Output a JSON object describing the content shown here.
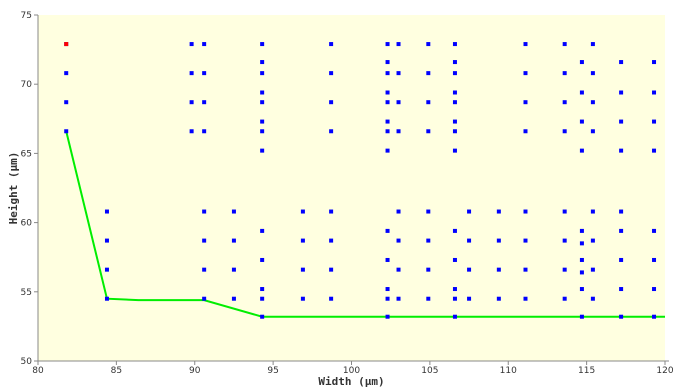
{
  "chart_data": {
    "type": "scatter",
    "title": "",
    "xlabel": "Width (µm)",
    "ylabel": "Height (µm)",
    "xlim": [
      80,
      120
    ],
    "ylim": [
      50,
      75
    ],
    "x_ticks": [
      80,
      85,
      90,
      95,
      100,
      105,
      110,
      115,
      120
    ],
    "y_ticks": [
      50,
      55,
      60,
      65,
      70,
      75
    ],
    "grid": false,
    "colors": {
      "background": "#ffffe0",
      "points": "#0000ff",
      "highlight": "#ff0000",
      "frontier": "#00ee00",
      "axis": "#888888"
    },
    "highlight_point": {
      "x": 81.8,
      "y": 72.9
    },
    "frontier_line": {
      "name": "",
      "x": [
        81.8,
        84.4,
        86.4,
        90.6,
        94.3,
        120
      ],
      "y": [
        66.6,
        54.5,
        54.4,
        54.4,
        53.2,
        53.2
      ]
    },
    "series": [
      {
        "name": "",
        "x": [
          81.8,
          81.8,
          81.8,
          81.8
        ],
        "y": [
          72.9,
          70.8,
          68.7,
          66.6
        ]
      },
      {
        "name": "",
        "x": [
          84.4,
          84.4,
          84.4,
          84.4
        ],
        "y": [
          60.8,
          58.7,
          56.6,
          54.5
        ]
      },
      {
        "name": "",
        "x": [
          89.8,
          89.8,
          89.8,
          89.8
        ],
        "y": [
          72.9,
          70.8,
          68.7,
          66.6
        ]
      },
      {
        "name": "",
        "x": [
          90.6,
          90.6,
          90.6,
          90.6,
          90.6,
          90.6,
          90.6,
          90.6
        ],
        "y": [
          72.9,
          70.8,
          68.7,
          66.6,
          60.8,
          58.7,
          56.6,
          54.5
        ]
      },
      {
        "name": "",
        "x": [
          92.5,
          92.5,
          92.5,
          92.5
        ],
        "y": [
          60.8,
          58.7,
          56.6,
          54.5
        ]
      },
      {
        "name": "",
        "x": [
          94.3,
          94.3,
          94.3,
          94.3,
          94.3,
          94.3,
          94.3,
          94.3,
          94.3,
          94.3,
          94.3,
          94.3,
          94.3
        ],
        "y": [
          72.9,
          71.6,
          70.8,
          69.4,
          68.7,
          67.3,
          66.6,
          65.2,
          59.4,
          57.3,
          55.2,
          54.5,
          53.2
        ]
      },
      {
        "name": "",
        "x": [
          96.9,
          96.9,
          96.9,
          96.9
        ],
        "y": [
          60.8,
          58.7,
          56.6,
          54.5
        ]
      },
      {
        "name": "",
        "x": [
          98.7,
          98.7,
          98.7,
          98.7,
          98.7,
          98.7,
          98.7,
          98.7
        ],
        "y": [
          72.9,
          70.8,
          68.7,
          66.6,
          60.8,
          58.7,
          56.6,
          54.5
        ]
      },
      {
        "name": "",
        "x": [
          102.3,
          102.3,
          102.3,
          102.3,
          102.3,
          102.3,
          102.3,
          102.3,
          102.3,
          102.3,
          102.3,
          102.3,
          102.3
        ],
        "y": [
          72.9,
          71.6,
          70.8,
          69.4,
          68.7,
          67.3,
          66.6,
          65.2,
          59.4,
          57.3,
          55.2,
          54.5,
          53.2
        ]
      },
      {
        "name": "",
        "x": [
          103.0,
          103.0,
          103.0,
          103.0,
          103.0,
          103.0,
          103.0,
          103.0
        ],
        "y": [
          72.9,
          70.8,
          68.7,
          66.6,
          60.8,
          58.7,
          56.6,
          54.5
        ]
      },
      {
        "name": "",
        "x": [
          104.9,
          104.9,
          104.9,
          104.9,
          104.9,
          104.9,
          104.9,
          104.9
        ],
        "y": [
          72.9,
          70.8,
          68.7,
          66.6,
          60.8,
          58.7,
          56.6,
          54.5
        ]
      },
      {
        "name": "",
        "x": [
          106.6,
          106.6,
          106.6,
          106.6,
          106.6,
          106.6,
          106.6,
          106.6,
          106.6,
          106.6,
          106.6,
          106.6,
          106.6
        ],
        "y": [
          72.9,
          71.6,
          70.8,
          69.4,
          68.7,
          67.3,
          66.6,
          65.2,
          59.4,
          57.3,
          55.2,
          54.5,
          53.2
        ]
      },
      {
        "name": "",
        "x": [
          107.5,
          107.5,
          107.5,
          107.5
        ],
        "y": [
          60.8,
          58.7,
          56.6,
          54.5
        ]
      },
      {
        "name": "",
        "x": [
          109.4,
          109.4,
          109.4,
          109.4
        ],
        "y": [
          60.8,
          58.7,
          56.6,
          54.5
        ]
      },
      {
        "name": "",
        "x": [
          111.1,
          111.1,
          111.1,
          111.1,
          111.1,
          111.1,
          111.1,
          111.1
        ],
        "y": [
          72.9,
          70.8,
          68.7,
          66.6,
          60.8,
          58.7,
          56.6,
          54.5
        ]
      },
      {
        "name": "",
        "x": [
          113.6,
          113.6,
          113.6,
          113.6,
          113.6,
          113.6,
          113.6,
          113.6
        ],
        "y": [
          72.9,
          70.8,
          68.7,
          66.6,
          60.8,
          58.7,
          56.6,
          54.5
        ]
      },
      {
        "name": "",
        "x": [
          114.7,
          114.7,
          114.7,
          114.7,
          114.7,
          114.7,
          114.7,
          114.7,
          114.7,
          114.7
        ],
        "y": [
          71.6,
          69.4,
          67.3,
          65.2,
          59.4,
          57.3,
          55.2,
          53.2,
          58.5,
          56.4
        ]
      },
      {
        "name": "",
        "x": [
          115.4,
          115.4,
          115.4,
          115.4,
          115.4,
          115.4,
          115.4,
          115.4
        ],
        "y": [
          72.9,
          70.8,
          68.7,
          66.6,
          60.8,
          58.7,
          56.6,
          54.5
        ]
      },
      {
        "name": "",
        "x": [
          117.2,
          117.2,
          117.2,
          117.2,
          117.2,
          117.2,
          117.2,
          117.2,
          117.2
        ],
        "y": [
          71.6,
          69.4,
          67.3,
          65.2,
          59.4,
          57.3,
          55.2,
          53.2,
          60.8
        ]
      },
      {
        "name": "",
        "x": [
          119.3,
          119.3,
          119.3,
          119.3,
          119.3,
          119.3,
          119.3,
          119.3
        ],
        "y": [
          71.6,
          69.4,
          67.3,
          65.2,
          59.4,
          57.3,
          55.2,
          53.2
        ]
      }
    ]
  }
}
